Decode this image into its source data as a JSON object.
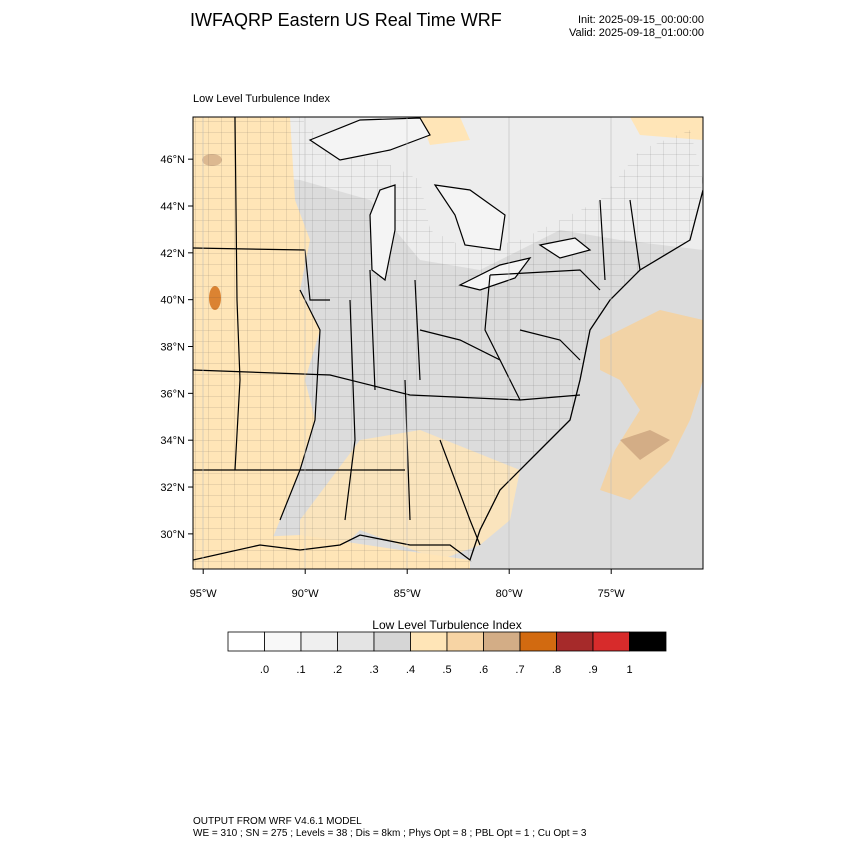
{
  "header": {
    "title": "IWFAQRP Eastern US Real Time WRF",
    "init": "Init: 2025-09-15_00:00:00",
    "valid": "Valid: 2025-09-18_01:00:00"
  },
  "map": {
    "subtitle": "Low Level Turbulence Index",
    "lat_labels": [
      "46°N",
      "44°N",
      "42°N",
      "40°N",
      "38°N",
      "36°N",
      "34°N",
      "32°N",
      "30°N"
    ],
    "lat_values": [
      46,
      44,
      42,
      40,
      38,
      36,
      34,
      32,
      30
    ],
    "lon_labels": [
      "95°W",
      "90°W",
      "85°W",
      "80°W",
      "75°W"
    ],
    "lon_values": [
      -95,
      -90,
      -85,
      -80,
      -75
    ],
    "lon_range": [
      -95.5,
      -70.5
    ],
    "lat_range": [
      28.5,
      47.8
    ]
  },
  "colorbar": {
    "title": "Low Level Turbulence Index",
    "colors": [
      "#ffffff",
      "#f8f8f8",
      "#efefef",
      "#e4e4e4",
      "#d6d6d6",
      "#ffe5b7",
      "#f7d4a4",
      "#d3ad86",
      "#d26a10",
      "#a62a2a",
      "#d72b2b",
      "#000000"
    ],
    "labels": [
      ".0",
      ".1",
      ".2",
      ".3",
      ".4",
      ".5",
      ".6",
      ".7",
      ".8",
      ".9",
      "1"
    ]
  },
  "footer": {
    "line1": "OUTPUT FROM WRF V4.6.1 MODEL",
    "line2": "WE = 310 ; SN = 275 ; Levels = 38 ; Dis = 8km ; Phys Opt = 8 ; PBL Opt = 1 ; Cu Opt = 3"
  }
}
